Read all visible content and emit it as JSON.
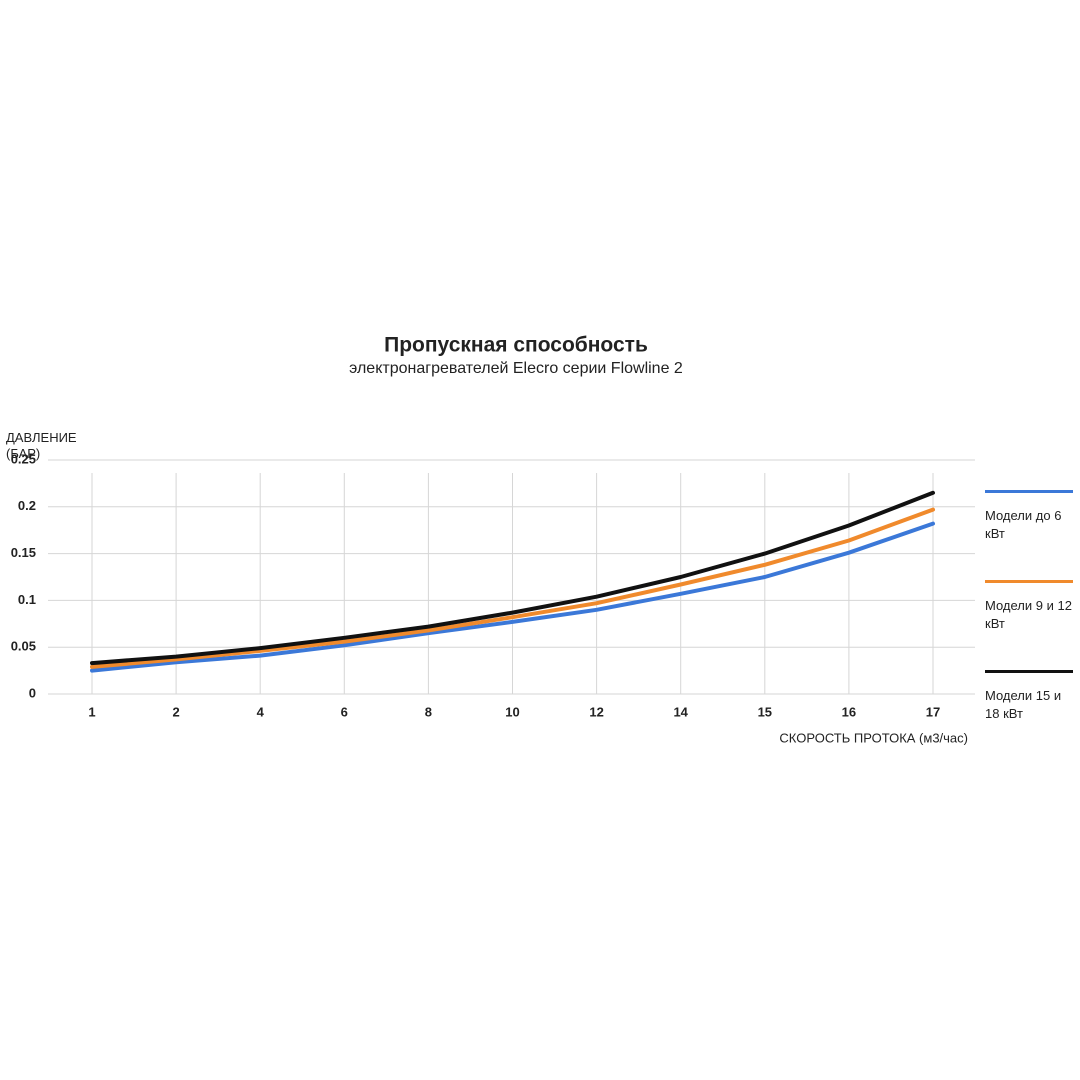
{
  "chart_data": {
    "type": "line",
    "title": "Пропускная способность",
    "subtitle": "электронагревателей Elecro серии Flowline 2",
    "y_label": "ДАВЛЕНИЕ (БАР)",
    "x_label": "СКОРОСТЬ ПРОТОКА (м3/час)",
    "categories": [
      "1",
      "2",
      "4",
      "6",
      "8",
      "10",
      "12",
      "14",
      "15",
      "16",
      "17"
    ],
    "series": [
      {
        "name": "Модели до 6 кВт",
        "color": "#3b78d8",
        "values": [
          0.025,
          0.034,
          0.041,
          0.052,
          0.065,
          0.077,
          0.09,
          0.107,
          0.125,
          0.151,
          0.182
        ]
      },
      {
        "name": "Модели 9 и 12 кВт",
        "color": "#f08a2c",
        "values": [
          0.029,
          0.037,
          0.046,
          0.056,
          0.068,
          0.082,
          0.097,
          0.117,
          0.138,
          0.164,
          0.197
        ]
      },
      {
        "name": "Модели 15 и 18 кВт",
        "color": "#111111",
        "values": [
          0.033,
          0.04,
          0.049,
          0.06,
          0.072,
          0.087,
          0.104,
          0.125,
          0.15,
          0.18,
          0.215
        ]
      }
    ],
    "ylim": [
      0,
      0.25
    ],
    "yticks": [
      0,
      0.05,
      0.1,
      0.15,
      0.2,
      0.25
    ],
    "grid": true
  }
}
